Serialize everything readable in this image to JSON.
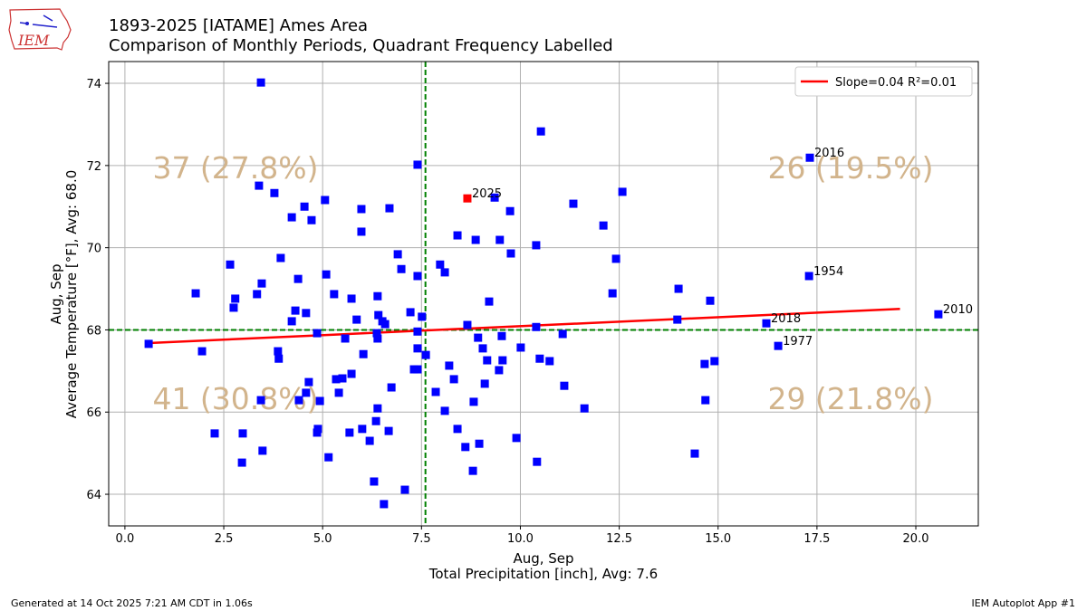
{
  "header": {
    "title_line1": "1893-2025 [IATAME] Ames Area",
    "title_line2": "Comparison of Monthly Periods, Quadrant Frequency Labelled",
    "logo_text": "IEM"
  },
  "footer": {
    "generated": "Generated at 14 Oct 2025 7:21 AM CDT in 1.06s",
    "app": "IEM Autoplot App #1"
  },
  "colors": {
    "points": "#0000ff",
    "highlight": "#ff0000",
    "fit": "#ff0000",
    "avg": "#008000",
    "quadrant": "#d2b48c",
    "grid": "#b0b0b0"
  },
  "chart_data": {
    "type": "scatter",
    "xlabel_line1": "Aug, Sep",
    "xlabel_line2": "Total Precipitation [inch], Avg: 7.6",
    "ylabel_line1": "Aug, Sep",
    "ylabel_line2": "Average Temperature [°F], Avg: 68.0",
    "xlim": [
      -0.41,
      21.58
    ],
    "ylim": [
      63.23,
      74.53
    ],
    "xticks": [
      "0.0",
      "2.5",
      "5.0",
      "7.5",
      "10.0",
      "12.5",
      "15.0",
      "17.5",
      "20.0"
    ],
    "yticks": [
      "64",
      "66",
      "68",
      "70",
      "72",
      "74"
    ],
    "grid": true,
    "x_avg": 7.6,
    "y_avg": 68.0,
    "legend": {
      "label": "Slope=0.04 R²=0.01",
      "placement": "top-right"
    },
    "fit_line": {
      "x": [
        0.6,
        19.6
      ],
      "y": [
        67.68,
        68.51
      ]
    },
    "quadrants": {
      "top_left": "37 (27.8%)",
      "top_right": "26 (19.5%)",
      "bottom_left": "41 (30.8%)",
      "bottom_right": "29 (21.8%)"
    },
    "highlight": {
      "label": "2025",
      "x": 8.66,
      "y": 71.2
    },
    "labeled_points": [
      {
        "label": "2016",
        "x": 17.32,
        "y": 72.19
      },
      {
        "label": "1954",
        "x": 17.3,
        "y": 69.31
      },
      {
        "label": "2018",
        "x": 16.22,
        "y": 68.16
      },
      {
        "label": "1977",
        "x": 16.52,
        "y": 67.61
      },
      {
        "label": "2010",
        "x": 20.57,
        "y": 68.38
      }
    ],
    "points": [
      [
        0.6,
        67.66
      ],
      [
        1.79,
        68.89
      ],
      [
        1.95,
        67.48
      ],
      [
        2.27,
        65.48
      ],
      [
        2.66,
        69.59
      ],
      [
        2.75,
        68.54
      ],
      [
        2.79,
        68.76
      ],
      [
        2.98,
        65.48
      ],
      [
        2.96,
        64.77
      ],
      [
        3.34,
        68.87
      ],
      [
        3.44,
        74.02
      ],
      [
        3.39,
        71.51
      ],
      [
        3.46,
        69.13
      ],
      [
        3.44,
        66.29
      ],
      [
        3.48,
        65.06
      ],
      [
        3.78,
        71.33
      ],
      [
        3.87,
        67.48
      ],
      [
        3.89,
        67.3
      ],
      [
        3.94,
        69.75
      ],
      [
        4.22,
        70.74
      ],
      [
        4.22,
        68.21
      ],
      [
        4.31,
        68.47
      ],
      [
        4.38,
        69.24
      ],
      [
        4.4,
        66.29
      ],
      [
        4.54,
        71.0
      ],
      [
        4.58,
        68.41
      ],
      [
        4.58,
        66.47
      ],
      [
        4.65,
        66.73
      ],
      [
        4.72,
        70.67
      ],
      [
        4.86,
        67.92
      ],
      [
        4.86,
        65.5
      ],
      [
        4.88,
        65.59
      ],
      [
        4.93,
        66.27
      ],
      [
        5.06,
        71.16
      ],
      [
        5.09,
        69.35
      ],
      [
        5.15,
        64.9
      ],
      [
        5.29,
        68.87
      ],
      [
        5.34,
        66.8
      ],
      [
        5.41,
        66.47
      ],
      [
        5.5,
        66.82
      ],
      [
        5.57,
        67.79
      ],
      [
        5.68,
        65.5
      ],
      [
        5.73,
        66.93
      ],
      [
        5.73,
        68.76
      ],
      [
        5.86,
        68.25
      ],
      [
        5.98,
        70.94
      ],
      [
        5.98,
        70.39
      ],
      [
        6.0,
        65.59
      ],
      [
        6.03,
        67.41
      ],
      [
        6.19,
        65.3
      ],
      [
        6.3,
        64.31
      ],
      [
        6.35,
        65.78
      ],
      [
        6.37,
        67.92
      ],
      [
        6.39,
        68.82
      ],
      [
        6.39,
        66.09
      ],
      [
        6.39,
        67.79
      ],
      [
        6.41,
        68.36
      ],
      [
        6.51,
        68.21
      ],
      [
        6.55,
        63.76
      ],
      [
        6.58,
        68.14
      ],
      [
        6.67,
        65.54
      ],
      [
        6.69,
        70.96
      ],
      [
        6.74,
        66.6
      ],
      [
        6.9,
        69.84
      ],
      [
        6.99,
        69.48
      ],
      [
        7.08,
        64.11
      ],
      [
        7.22,
        68.43
      ],
      [
        7.31,
        67.04
      ],
      [
        7.4,
        67.04
      ],
      [
        7.4,
        72.02
      ],
      [
        7.4,
        69.31
      ],
      [
        7.4,
        67.55
      ],
      [
        7.4,
        67.96
      ],
      [
        7.51,
        68.32
      ],
      [
        7.61,
        67.39
      ],
      [
        7.86,
        66.49
      ],
      [
        7.97,
        69.59
      ],
      [
        8.09,
        69.4
      ],
      [
        8.09,
        66.03
      ],
      [
        8.2,
        67.13
      ],
      [
        8.32,
        66.8
      ],
      [
        8.41,
        70.3
      ],
      [
        8.41,
        65.59
      ],
      [
        8.61,
        65.15
      ],
      [
        8.66,
        68.12
      ],
      [
        8.8,
        64.57
      ],
      [
        8.82,
        66.25
      ],
      [
        8.87,
        70.19
      ],
      [
        8.93,
        67.81
      ],
      [
        8.96,
        65.23
      ],
      [
        9.05,
        67.55
      ],
      [
        9.1,
        66.69
      ],
      [
        9.16,
        67.26
      ],
      [
        9.21,
        68.69
      ],
      [
        9.35,
        71.22
      ],
      [
        9.46,
        67.02
      ],
      [
        9.48,
        70.19
      ],
      [
        9.53,
        67.85
      ],
      [
        9.55,
        67.26
      ],
      [
        9.74,
        70.89
      ],
      [
        9.76,
        69.86
      ],
      [
        9.9,
        65.37
      ],
      [
        10.01,
        67.57
      ],
      [
        10.4,
        68.07
      ],
      [
        10.4,
        70.06
      ],
      [
        10.42,
        64.79
      ],
      [
        10.49,
        67.3
      ],
      [
        10.52,
        72.83
      ],
      [
        10.74,
        67.24
      ],
      [
        11.07,
        67.9
      ],
      [
        11.11,
        66.64
      ],
      [
        11.34,
        71.07
      ],
      [
        11.62,
        66.09
      ],
      [
        12.1,
        70.54
      ],
      [
        12.33,
        68.89
      ],
      [
        12.42,
        69.73
      ],
      [
        12.58,
        71.36
      ],
      [
        14.0,
        69.0
      ],
      [
        13.97,
        68.25
      ],
      [
        14.41,
        64.99
      ],
      [
        14.66,
        67.17
      ],
      [
        14.68,
        66.29
      ],
      [
        14.8,
        68.71
      ],
      [
        14.91,
        67.24
      ],
      [
        16.22,
        68.16
      ],
      [
        16.52,
        67.61
      ],
      [
        17.32,
        72.19
      ],
      [
        17.3,
        69.31
      ],
      [
        20.57,
        68.38
      ]
    ]
  }
}
